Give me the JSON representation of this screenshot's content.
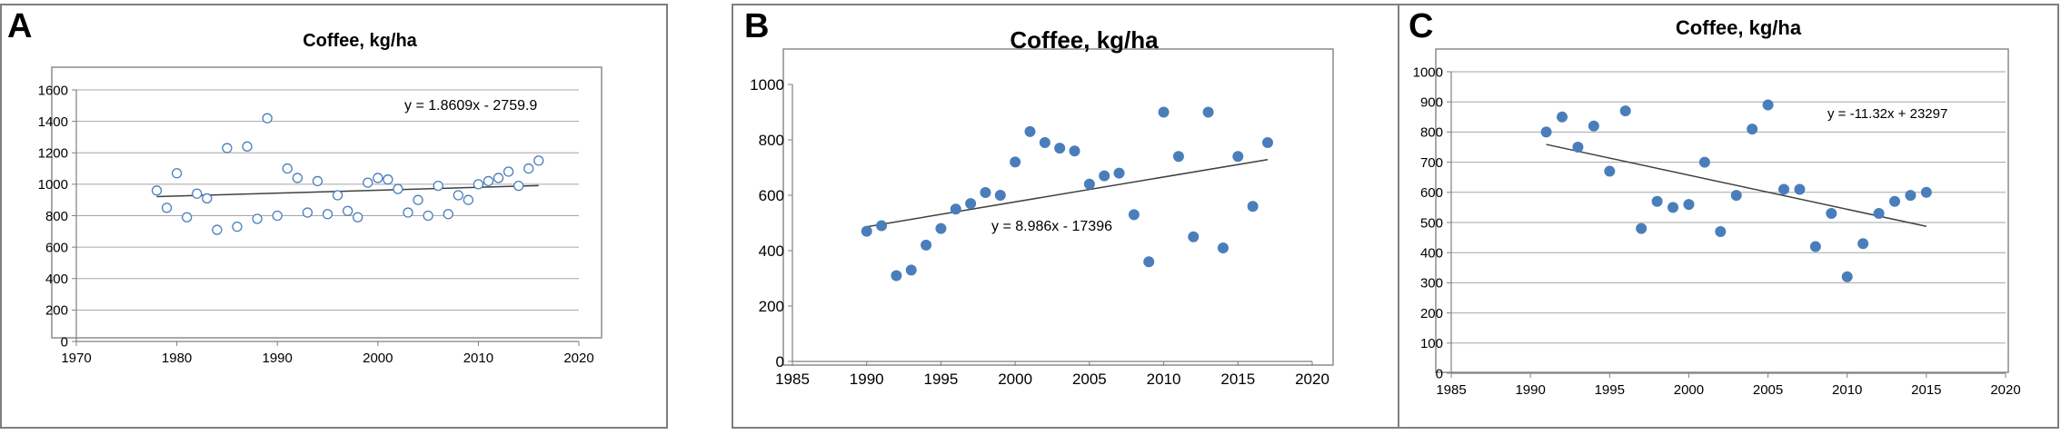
{
  "chart_data": [
    {
      "panel_label": "A",
      "type": "scatter",
      "title": "Coffee, kg/ha",
      "marker": "open-circle",
      "color": "#4a7ebb",
      "xlim": [
        1970,
        2020
      ],
      "ylim": [
        0,
        1600
      ],
      "xticks": [
        "1970",
        "1980",
        "1990",
        "2000",
        "2010",
        "2020"
      ],
      "yticks": [
        "0",
        "200",
        "400",
        "600",
        "800",
        "1000",
        "1200",
        "1400",
        "1600"
      ],
      "grid": true,
      "trendline": {
        "equation": "y = 1.8609x - 2759.9",
        "slope": 1.8609,
        "intercept": -2759.9,
        "x_range": [
          1978,
          2016
        ]
      },
      "points": [
        [
          1978,
          960
        ],
        [
          1979,
          850
        ],
        [
          1980,
          1070
        ],
        [
          1981,
          790
        ],
        [
          1982,
          940
        ],
        [
          1983,
          910
        ],
        [
          1984,
          710
        ],
        [
          1985,
          1230
        ],
        [
          1986,
          730
        ],
        [
          1987,
          1240
        ],
        [
          1988,
          780
        ],
        [
          1989,
          1420
        ],
        [
          1990,
          800
        ],
        [
          1991,
          1100
        ],
        [
          1992,
          1040
        ],
        [
          1993,
          820
        ],
        [
          1994,
          1020
        ],
        [
          1995,
          810
        ],
        [
          1996,
          930
        ],
        [
          1997,
          830
        ],
        [
          1998,
          790
        ],
        [
          1999,
          1010
        ],
        [
          2000,
          1040
        ],
        [
          2001,
          1030
        ],
        [
          2002,
          970
        ],
        [
          2003,
          820
        ],
        [
          2004,
          900
        ],
        [
          2005,
          800
        ],
        [
          2006,
          990
        ],
        [
          2007,
          810
        ],
        [
          2008,
          930
        ],
        [
          2009,
          900
        ],
        [
          2010,
          1000
        ],
        [
          2011,
          1020
        ],
        [
          2012,
          1040
        ],
        [
          2013,
          1080
        ],
        [
          2014,
          990
        ],
        [
          2015,
          1100
        ],
        [
          2016,
          1150
        ]
      ]
    },
    {
      "panel_label": "B",
      "type": "scatter",
      "title": "Coffee, kg/ha",
      "marker": "filled-circle",
      "color": "#4a7ebb",
      "xlim": [
        1985,
        2020
      ],
      "ylim": [
        0,
        1000
      ],
      "xticks": [
        "1985",
        "1990",
        "1995",
        "2000",
        "2005",
        "2010",
        "2015",
        "2020"
      ],
      "yticks": [
        "0",
        "200",
        "400",
        "600",
        "800",
        "1000"
      ],
      "grid": false,
      "trendline": {
        "equation": "y = 8.986x - 17396",
        "slope": 8.986,
        "intercept": -17396,
        "x_range": [
          1990,
          2017
        ]
      },
      "points": [
        [
          1990,
          470
        ],
        [
          1991,
          490
        ],
        [
          1992,
          310
        ],
        [
          1993,
          330
        ],
        [
          1994,
          420
        ],
        [
          1995,
          480
        ],
        [
          1996,
          550
        ],
        [
          1997,
          570
        ],
        [
          1998,
          610
        ],
        [
          1999,
          600
        ],
        [
          2000,
          720
        ],
        [
          2001,
          830
        ],
        [
          2002,
          790
        ],
        [
          2003,
          770
        ],
        [
          2004,
          760
        ],
        [
          2005,
          640
        ],
        [
          2006,
          670
        ],
        [
          2007,
          680
        ],
        [
          2008,
          530
        ],
        [
          2009,
          360
        ],
        [
          2010,
          900
        ],
        [
          2011,
          740
        ],
        [
          2012,
          450
        ],
        [
          2013,
          900
        ],
        [
          2014,
          410
        ],
        [
          2015,
          740
        ],
        [
          2016,
          560
        ],
        [
          2017,
          790
        ]
      ]
    },
    {
      "panel_label": "C",
      "type": "scatter",
      "title": "Coffee, kg/ha",
      "marker": "filled-circle",
      "color": "#4a7ebb",
      "xlim": [
        1985,
        2020
      ],
      "ylim": [
        0,
        1000
      ],
      "xticks": [
        "1985",
        "1990",
        "1995",
        "2000",
        "2005",
        "2010",
        "2015",
        "2020"
      ],
      "yticks": [
        "0",
        "100",
        "200",
        "300",
        "400",
        "500",
        "600",
        "700",
        "800",
        "900",
        "1000"
      ],
      "grid": true,
      "trendline": {
        "equation": "y = -11.32x + 23297",
        "slope": -11.32,
        "intercept": 23297,
        "x_range": [
          1991,
          2015
        ]
      },
      "points": [
        [
          1991,
          800
        ],
        [
          1992,
          850
        ],
        [
          1993,
          750
        ],
        [
          1994,
          820
        ],
        [
          1995,
          670
        ],
        [
          1996,
          870
        ],
        [
          1997,
          480
        ],
        [
          1998,
          570
        ],
        [
          1999,
          550
        ],
        [
          2000,
          560
        ],
        [
          2001,
          700
        ],
        [
          2002,
          470
        ],
        [
          2003,
          590
        ],
        [
          2004,
          810
        ],
        [
          2005,
          890
        ],
        [
          2006,
          610
        ],
        [
          2007,
          610
        ],
        [
          2008,
          420
        ],
        [
          2009,
          530
        ],
        [
          2010,
          320
        ],
        [
          2011,
          430
        ],
        [
          2012,
          530
        ],
        [
          2013,
          570
        ],
        [
          2014,
          590
        ],
        [
          2015,
          600
        ]
      ]
    }
  ]
}
